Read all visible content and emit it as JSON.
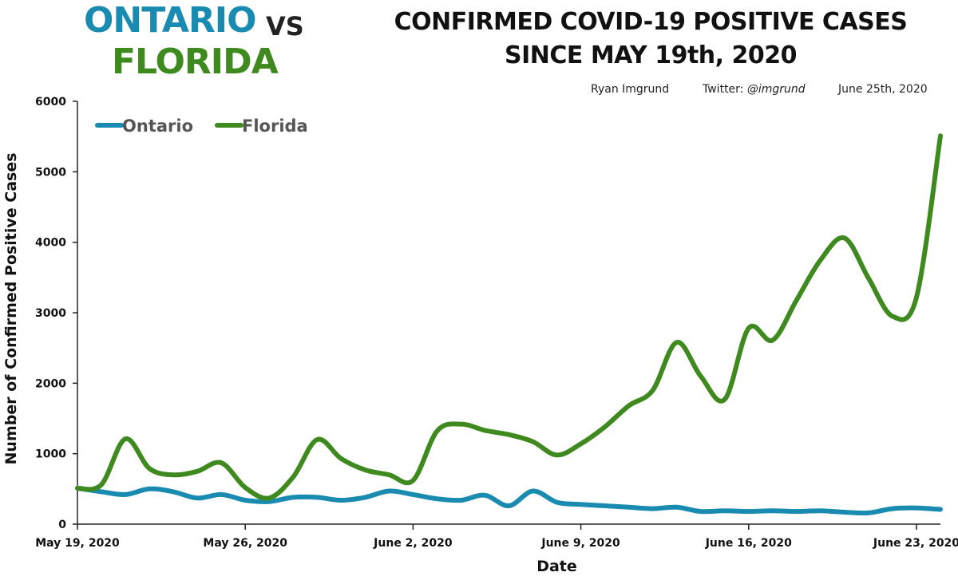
{
  "header": {
    "brand_ontario": "ONTARIO",
    "brand_vs": "VS",
    "brand_florida": "FLORIDA",
    "title_line1": "CONFIRMED COVID-19 POSITIVE CASES",
    "title_line2": "SINCE MAY 19th, 2020",
    "author": "Ryan Imgrund",
    "twitter_prefix": "Twitter: ",
    "twitter_handle": "@imgrund",
    "date": "June 25th, 2020"
  },
  "colors": {
    "ontario": "#1a8bb0",
    "florida": "#3f8a1f",
    "axis": "#222222"
  },
  "chart_data": {
    "type": "line",
    "title": "CONFIRMED COVID-19 POSITIVE CASES SINCE MAY 19th, 2020",
    "xlabel": "Date",
    "ylabel": "Number of Confirmed Positive Cases",
    "ylim": [
      0,
      6000
    ],
    "yticks": [
      "0",
      "1000",
      "2000",
      "3000",
      "4000",
      "5000",
      "6000"
    ],
    "xlim": [
      "2020-05-19",
      "2020-06-24"
    ],
    "xtick_labels": [
      "May 19, 2020",
      "May 26, 2020",
      "June 2, 2020",
      "June 9, 2020",
      "June 16, 2020",
      "June 23, 2020"
    ],
    "xtick_dates": [
      "2020-05-19",
      "2020-05-26",
      "2020-06-02",
      "2020-06-09",
      "2020-06-16",
      "2020-06-23"
    ],
    "grid": false,
    "legend_position": "top-left",
    "x": [
      "2020-05-19",
      "2020-05-20",
      "2020-05-21",
      "2020-05-22",
      "2020-05-23",
      "2020-05-24",
      "2020-05-25",
      "2020-05-26",
      "2020-05-27",
      "2020-05-28",
      "2020-05-29",
      "2020-05-30",
      "2020-05-31",
      "2020-06-01",
      "2020-06-02",
      "2020-06-03",
      "2020-06-04",
      "2020-06-05",
      "2020-06-06",
      "2020-06-07",
      "2020-06-08",
      "2020-06-09",
      "2020-06-10",
      "2020-06-11",
      "2020-06-12",
      "2020-06-13",
      "2020-06-14",
      "2020-06-15",
      "2020-06-16",
      "2020-06-17",
      "2020-06-18",
      "2020-06-19",
      "2020-06-20",
      "2020-06-21",
      "2020-06-22",
      "2020-06-23",
      "2020-06-24"
    ],
    "series": [
      {
        "name": "Ontario",
        "values": [
          510,
          460,
          420,
          500,
          460,
          370,
          420,
          340,
          320,
          380,
          380,
          340,
          380,
          470,
          420,
          360,
          340,
          410,
          260,
          470,
          310,
          280,
          260,
          240,
          220,
          240,
          180,
          190,
          180,
          190,
          180,
          190,
          170,
          160,
          220,
          230,
          210
        ]
      },
      {
        "name": "Florida",
        "values": [
          510,
          560,
          1210,
          790,
          700,
          750,
          870,
          520,
          370,
          670,
          1200,
          930,
          770,
          700,
          620,
          1320,
          1420,
          1330,
          1270,
          1170,
          980,
          1140,
          1380,
          1680,
          1900,
          2580,
          2100,
          1770,
          2780,
          2610,
          3180,
          3750,
          4060,
          3490,
          2950,
          3220,
          5510
        ]
      }
    ]
  }
}
